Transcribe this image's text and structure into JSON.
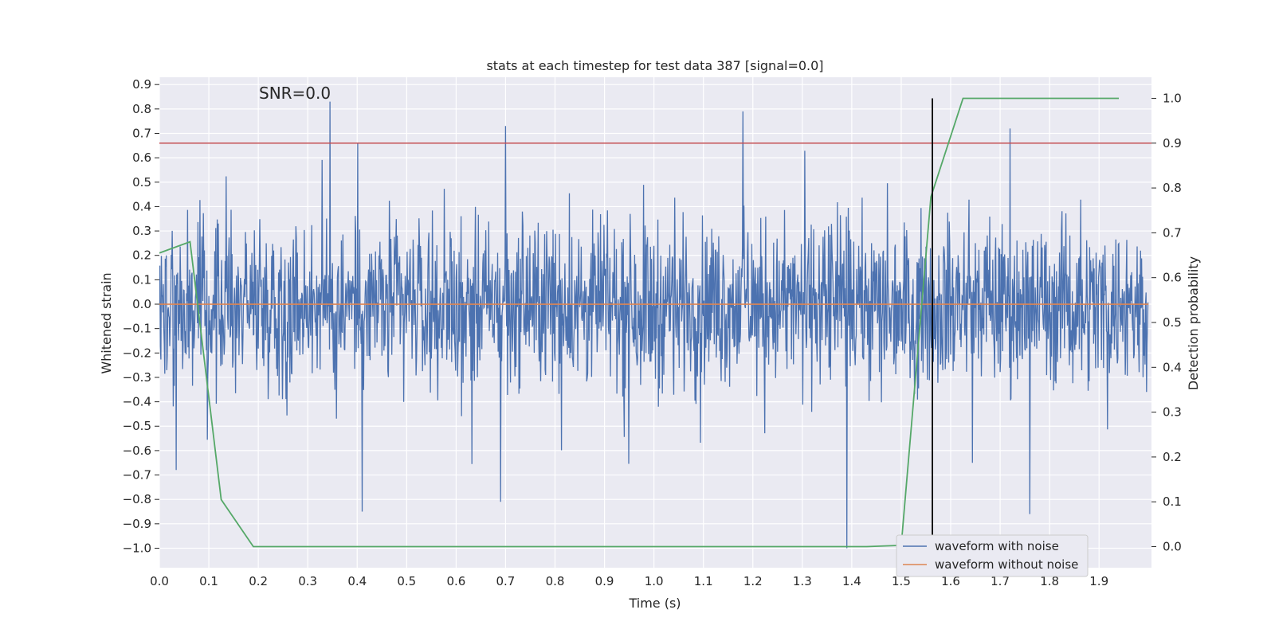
{
  "chart_data": {
    "type": "line",
    "title": "stats at each timestep for test data 387 [signal=0.0]",
    "xlabel": "Time (s)",
    "ylabel_left": "Whitened strain",
    "ylabel_right": "Detection probability",
    "annotation": "SNR=0.0",
    "xlim": [
      0.0,
      2.0
    ],
    "ylim_left": [
      -1.08,
      0.93
    ],
    "ylim_right": [
      -0.047,
      1.047
    ],
    "x_ticks": [
      "0.0",
      "0.1",
      "0.2",
      "0.3",
      "0.4",
      "0.5",
      "0.6",
      "0.7",
      "0.8",
      "0.9",
      "1.0",
      "1.1",
      "1.2",
      "1.3",
      "1.4",
      "1.5",
      "1.6",
      "1.7",
      "1.8",
      "1.9"
    ],
    "y_ticks_left": [
      "0.9",
      "0.8",
      "0.7",
      "0.6",
      "0.5",
      "0.4",
      "0.3",
      "0.2",
      "0.1",
      "0.0",
      "−0.1",
      "−0.2",
      "−0.3",
      "−0.4",
      "−0.5",
      "−0.6",
      "−0.7",
      "−0.8",
      "−0.9",
      "−1.0"
    ],
    "y_ticks_right": [
      "0.0",
      "0.1",
      "0.2",
      "0.3",
      "0.4",
      "0.5",
      "0.6",
      "0.7",
      "0.8",
      "0.9",
      "1.0"
    ],
    "grid": true,
    "legend_position": "lower-right",
    "series": [
      {
        "name": "waveform with noise",
        "color": "#4c72b0",
        "axis": "left",
        "description": "dense noisy whitened strain, roughly within [-1.0, 0.83]",
        "peaks": [
          {
            "x": 0.345,
            "y": 0.83
          },
          {
            "x": 0.41,
            "y": -0.85
          },
          {
            "x": 0.7,
            "y": 0.73
          },
          {
            "x": 0.69,
            "y": -0.81
          },
          {
            "x": 1.18,
            "y": 0.79
          },
          {
            "x": 1.39,
            "y": -1.0
          },
          {
            "x": 1.76,
            "y": -0.86
          },
          {
            "x": 1.72,
            "y": 0.72
          }
        ]
      },
      {
        "name": "waveform without noise",
        "color": "#dd8452",
        "axis": "left",
        "x": [
          0.0,
          2.0
        ],
        "y": [
          0.0,
          0.0
        ]
      },
      {
        "name": "",
        "color": "#55a868",
        "axis": "right",
        "x": [
          0.0,
          0.062,
          0.125,
          0.19,
          1.43,
          1.5,
          1.56,
          1.625,
          1.94
        ],
        "y": [
          0.655,
          0.68,
          0.105,
          0.0,
          0.0,
          0.003,
          0.78,
          1.0,
          1.0
        ]
      }
    ],
    "hlines": [
      {
        "axis": "right",
        "y": 0.9,
        "color": "#c44e52"
      }
    ],
    "vlines": [
      {
        "x": 1.563,
        "ymin_right": 0.0,
        "ymax_right": 1.0,
        "color": "#000000"
      }
    ]
  }
}
